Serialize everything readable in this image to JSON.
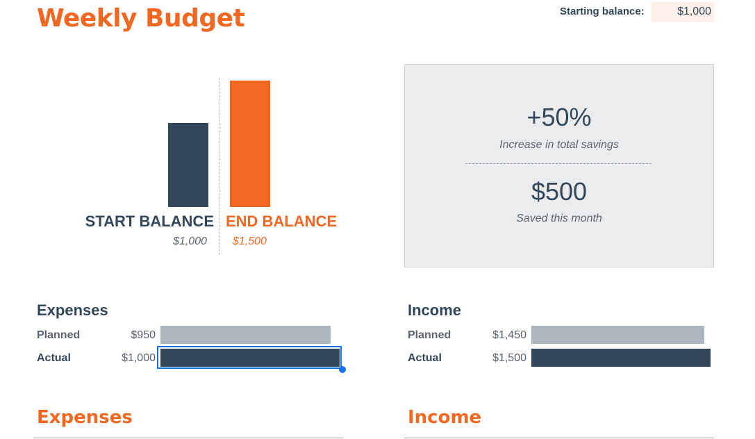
{
  "header": {
    "title": "Weekly Budget",
    "starting_balance_label": "Starting balance:",
    "starting_balance_value": "$1,000"
  },
  "balance_chart": {
    "start_label": "START BALANCE",
    "end_label": "END BALANCE",
    "start_value_text": "$1,000",
    "end_value_text": "$1,500",
    "start_value": 1000,
    "end_value": 1500,
    "start_color": "#33475b",
    "end_color": "#f26722"
  },
  "summary": {
    "percent_change": "+50%",
    "percent_label": "Increase in total savings",
    "saved_amount": "$500",
    "saved_label": "Saved this month"
  },
  "expenses_summary": {
    "title": "Expenses",
    "planned_label": "Planned",
    "planned_value": "$950",
    "actual_label": "Actual",
    "actual_value": "$1,000",
    "planned": 950,
    "actual": 1000
  },
  "income_summary": {
    "title": "Income",
    "planned_label": "Planned",
    "planned_value": "$1,450",
    "actual_label": "Actual",
    "actual_value": "$1,500",
    "planned": 1450,
    "actual": 1500
  },
  "sections": {
    "expenses_title": "Expenses",
    "income_title": "Income"
  },
  "colors": {
    "accent": "#f26722",
    "primary": "#33475b",
    "planned_bar": "#adb5bf",
    "selection": "#1a73e8"
  }
}
